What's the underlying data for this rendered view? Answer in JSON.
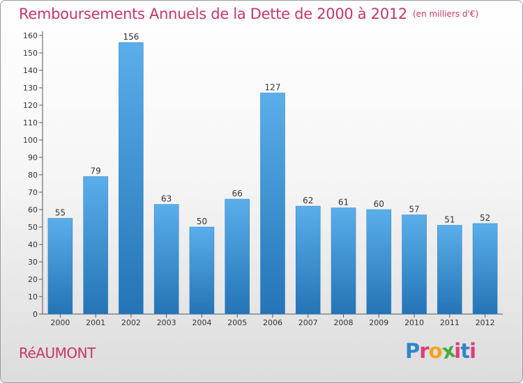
{
  "header": {
    "title": "Remboursements Annuels de la Dette de 2000 à 2012",
    "unit": "(en milliers d'€)"
  },
  "footer": {
    "city": "RéAUMONT",
    "logo_letters": [
      "P",
      "r",
      "o",
      "x",
      "i",
      "t",
      "i"
    ]
  },
  "colors": {
    "title": "#c8356b",
    "bar_light": "#5aaeea",
    "bar_dark": "#2474b6",
    "logo": [
      "#2f86c8",
      "#e23a7a",
      "#f7a21b",
      "#45ad3c",
      "#e23a7a",
      "#2f86c8",
      "#e23a7a"
    ]
  },
  "chart_data": {
    "type": "bar",
    "title": "Remboursements Annuels de la Dette de 2000 à 2012",
    "unit": "(en milliers d'€)",
    "categories": [
      "2000",
      "2001",
      "2002",
      "2003",
      "2004",
      "2005",
      "2006",
      "2007",
      "2008",
      "2009",
      "2010",
      "2011",
      "2012"
    ],
    "values": [
      55,
      79,
      156,
      63,
      50,
      66,
      127,
      62,
      61,
      60,
      57,
      51,
      52
    ],
    "ylim": [
      0,
      160
    ],
    "yticks": [
      0,
      10,
      20,
      30,
      40,
      50,
      60,
      70,
      80,
      90,
      100,
      110,
      120,
      130,
      140,
      150,
      160
    ],
    "grid": false,
    "legend": "none"
  }
}
